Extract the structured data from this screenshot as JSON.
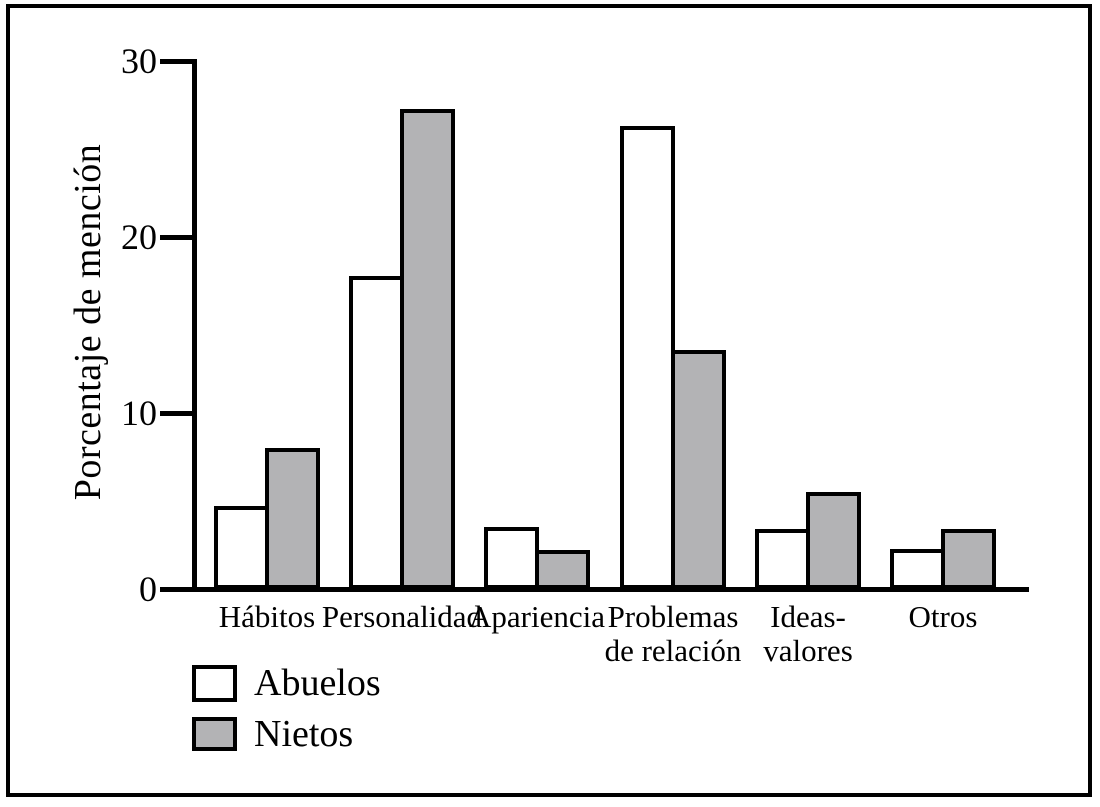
{
  "chart_data": {
    "type": "bar",
    "title": "",
    "xlabel": "",
    "ylabel": "Porcentaje de mención",
    "ylim": [
      0,
      30
    ],
    "yticks": [
      0,
      10,
      20,
      30
    ],
    "grid": false,
    "legend_position": "bottom-left",
    "categories": [
      "Hábitos",
      "Personalidad",
      "Apariencia",
      "Problemas\nde relación",
      "Ideas-\nvalores",
      "Otros"
    ],
    "series": [
      {
        "name": "Abuelos",
        "fill": "#ffffff",
        "values": [
          4.7,
          17.8,
          3.5,
          26.3,
          3.4,
          2.3
        ]
      },
      {
        "name": "Nietos",
        "fill": "#b3b3b5",
        "values": [
          8.0,
          27.3,
          2.2,
          13.6,
          5.5,
          3.4
        ]
      }
    ],
    "outline_color": "#000000"
  }
}
